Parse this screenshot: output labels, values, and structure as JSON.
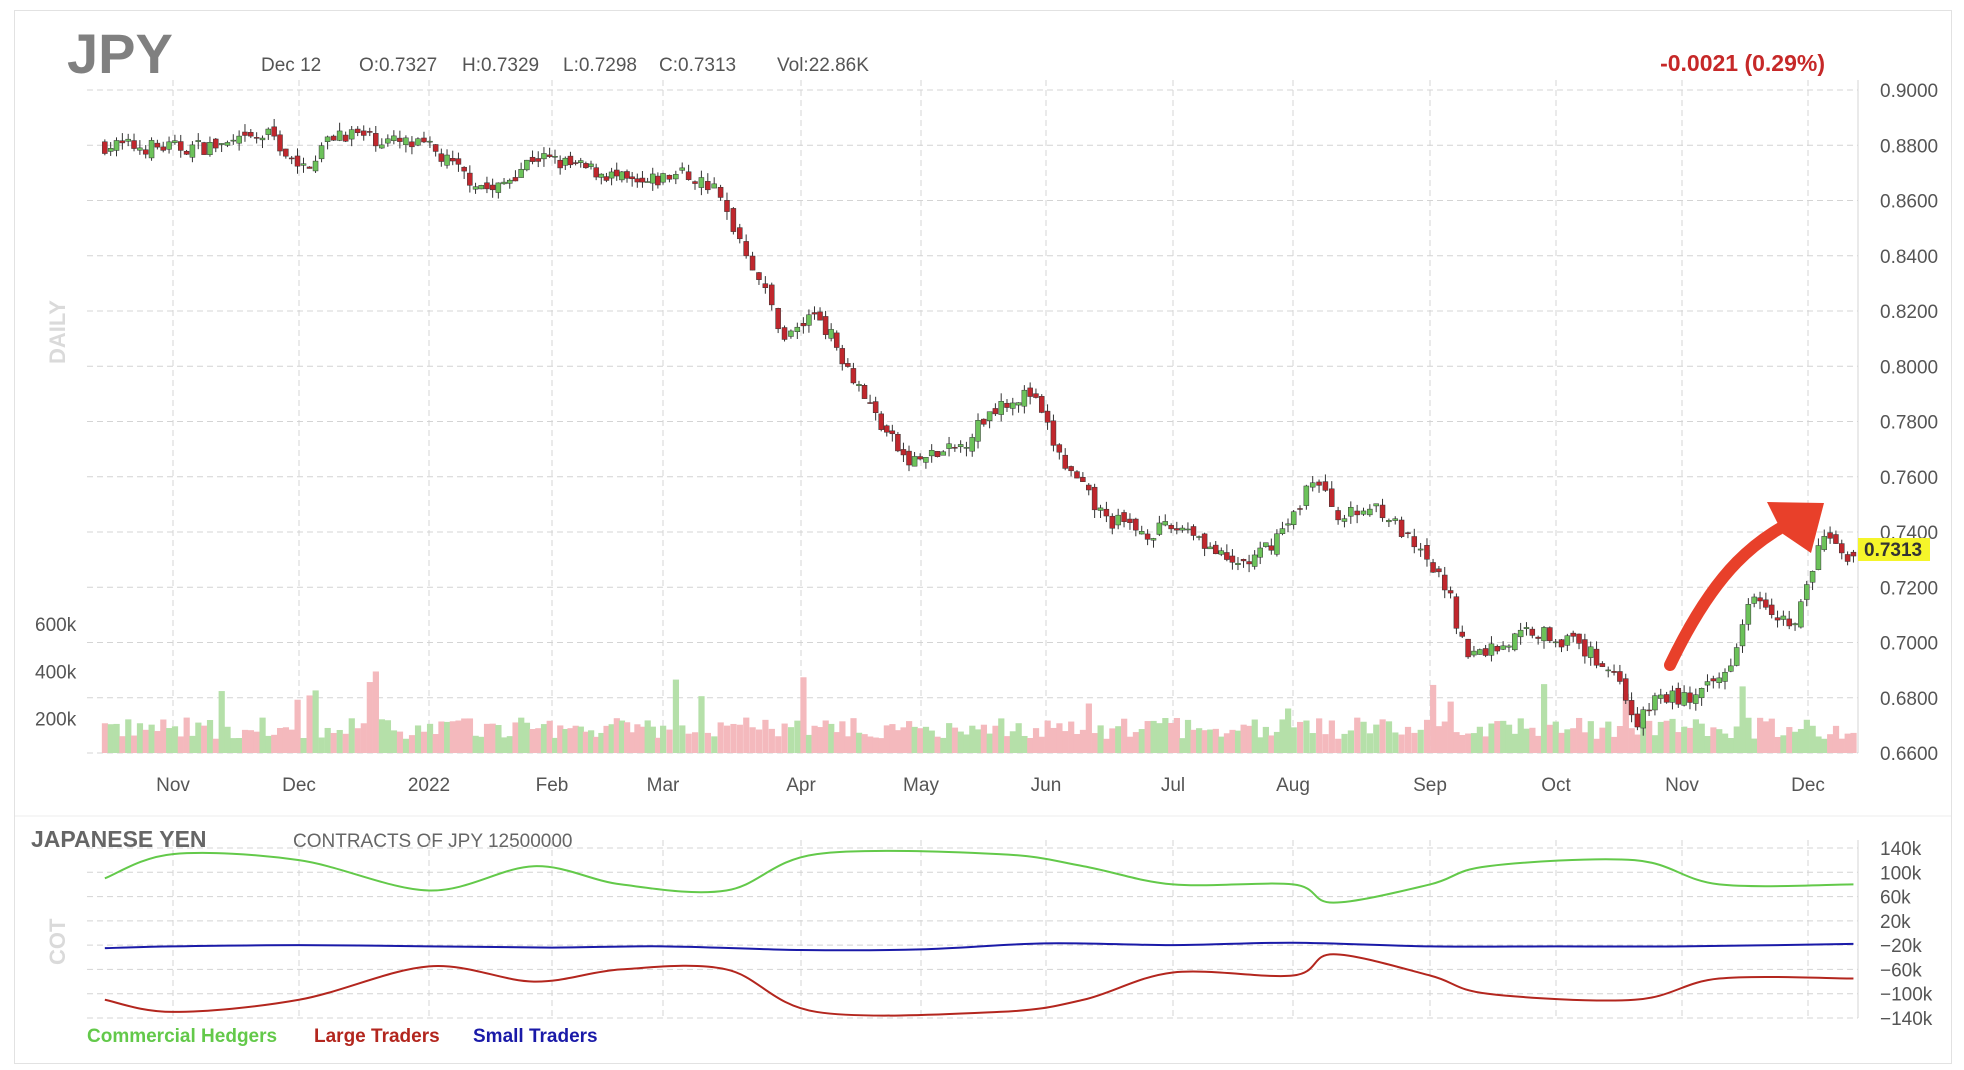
{
  "header": {
    "symbol": "JPY",
    "date": "Dec 12",
    "open": "O:0.7327",
    "high": "H:0.7329",
    "low": "L:0.7298",
    "close": "C:0.7313",
    "volume": "Vol:22.86K",
    "change": "-0.0021 (0.29%)"
  },
  "last_price_label": "0.7313",
  "side_labels": {
    "price": "DAILY",
    "cot": "COT"
  },
  "cot_header": {
    "title": "JAPANESE YEN",
    "subtitle": "CONTRACTS OF JPY 12500000"
  },
  "colors": {
    "up": "#6cc25a",
    "down": "#c0272d",
    "volume_up": "#b5e0a9",
    "volume_down": "#f4b9bd",
    "commercial": "#63c94a",
    "large": "#b3261e",
    "small": "#1a1aa8",
    "arrow": "#e8402a",
    "change_text": "#c62828",
    "highlight": "#f5f52a"
  },
  "chart_data": [
    {
      "type": "candlestick",
      "title": "JPY",
      "x_tick_labels": [
        "Nov",
        "Dec",
        "2022",
        "Feb",
        "Mar",
        "Apr",
        "May",
        "Jun",
        "Jul",
        "Aug",
        "Sep",
        "Oct",
        "Nov",
        "Dec"
      ],
      "y_tick_labels": [
        "0.9000",
        "0.8800",
        "0.8600",
        "0.8400",
        "0.8200",
        "0.8000",
        "0.7800",
        "0.7600",
        "0.7400",
        "0.7200",
        "0.7000",
        "0.6800",
        "0.6600"
      ],
      "ylim": [
        0.66,
        0.9
      ],
      "last_close": 0.7313,
      "grid": true,
      "closes": [
        [
          "Oct 15",
          0.88
        ],
        [
          "Nov 1",
          0.879
        ],
        [
          "Nov 15",
          0.88
        ],
        [
          "Nov 25",
          0.884
        ],
        [
          "Dec 1",
          0.87
        ],
        [
          "Dec 10",
          0.885
        ],
        [
          "Dec 20",
          0.882
        ],
        [
          "Jan 1",
          0.879
        ],
        [
          "Jan 10",
          0.869
        ],
        [
          "Jan 17",
          0.863
        ],
        [
          "Jan 27",
          0.876
        ],
        [
          "Feb 5",
          0.873
        ],
        [
          "Feb 15",
          0.87
        ],
        [
          "Feb 25",
          0.865
        ],
        [
          "Mar 5",
          0.87
        ],
        [
          "Mar 12",
          0.865
        ],
        [
          "Mar 20",
          0.84
        ],
        [
          "Mar 28",
          0.81
        ],
        [
          "Apr 5",
          0.82
        ],
        [
          "Apr 15",
          0.795
        ],
        [
          "Apr 20",
          0.782
        ],
        [
          "Apr 28",
          0.765
        ],
        [
          "May 10",
          0.77
        ],
        [
          "May 20",
          0.787
        ],
        [
          "May 28",
          0.79
        ],
        [
          "Jun 5",
          0.765
        ],
        [
          "Jun 15",
          0.745
        ],
        [
          "Jun 25",
          0.74
        ],
        [
          "Jul 5",
          0.742
        ],
        [
          "Jul 15",
          0.728
        ],
        [
          "Jul 22",
          0.73
        ],
        [
          "Aug 1",
          0.745
        ],
        [
          "Aug 5",
          0.76
        ],
        [
          "Aug 12",
          0.745
        ],
        [
          "Aug 20",
          0.75
        ],
        [
          "Aug 30",
          0.73
        ],
        [
          "Sep 5",
          0.72
        ],
        [
          "Sep 10",
          0.695
        ],
        [
          "Sep 20",
          0.7
        ],
        [
          "Sep 25",
          0.705
        ],
        [
          "Oct 5",
          0.7
        ],
        [
          "Oct 15",
          0.69
        ],
        [
          "Oct 21",
          0.67
        ],
        [
          "Oct 25",
          0.68
        ],
        [
          "Nov 5",
          0.68
        ],
        [
          "Nov 12",
          0.69
        ],
        [
          "Nov 18",
          0.72
        ],
        [
          "Nov 28",
          0.705
        ],
        [
          "Dec 5",
          0.74
        ],
        [
          "Dec 8",
          0.733
        ],
        [
          "Dec 12",
          0.7313
        ]
      ]
    },
    {
      "type": "bar",
      "title": "Volume",
      "y_tick_labels": [
        "600k",
        "400k",
        "200k"
      ],
      "ylim": [
        0,
        600000
      ],
      "grid": false
    },
    {
      "type": "line",
      "title": "JAPANESE YEN",
      "subtitle": "CONTRACTS OF JPY 12500000",
      "x_tick_labels": [
        "Nov",
        "Dec",
        "2022",
        "Feb",
        "Mar",
        "Apr",
        "May",
        "Jun",
        "Jul",
        "Aug",
        "Sep",
        "Oct",
        "Nov",
        "Dec"
      ],
      "y_tick_labels": [
        "140k",
        "100k",
        "60k",
        "20k",
        "−20k",
        "−60k",
        "−100k",
        "−140k"
      ],
      "ylim": [
        -140000,
        140000
      ],
      "grid": true,
      "legend_position": "bottom-left",
      "series": [
        {
          "name": "Commercial Hedgers",
          "points": [
            [
              "Oct 15",
              90000
            ],
            [
              "Nov 1",
              130000
            ],
            [
              "Dec 1",
              120000
            ],
            [
              "Jan 1",
              70000
            ],
            [
              "Jan 27",
              110000
            ],
            [
              "Feb 20",
              80000
            ],
            [
              "Mar 15",
              70000
            ],
            [
              "Apr 5",
              130000
            ],
            [
              "May 20",
              130000
            ],
            [
              "Jun 10",
              110000
            ],
            [
              "Jul 1",
              80000
            ],
            [
              "Aug 1",
              80000
            ],
            [
              "Aug 10",
              50000
            ],
            [
              "Sep 1",
              80000
            ],
            [
              "Sep 15",
              110000
            ],
            [
              "Oct 20",
              120000
            ],
            [
              "Nov 10",
              80000
            ],
            [
              "Dec 12",
              80000
            ]
          ]
        },
        {
          "name": "Large Traders",
          "points": [
            [
              "Oct 15",
              -110000
            ],
            [
              "Nov 1",
              -130000
            ],
            [
              "Dec 1",
              -110000
            ],
            [
              "Jan 1",
              -55000
            ],
            [
              "Jan 27",
              -80000
            ],
            [
              "Feb 20",
              -60000
            ],
            [
              "Mar 15",
              -60000
            ],
            [
              "Apr 5",
              -130000
            ],
            [
              "May 20",
              -130000
            ],
            [
              "Jun 10",
              -110000
            ],
            [
              "Jul 1",
              -65000
            ],
            [
              "Aug 1",
              -70000
            ],
            [
              "Aug 10",
              -35000
            ],
            [
              "Sep 1",
              -70000
            ],
            [
              "Sep 15",
              -100000
            ],
            [
              "Oct 20",
              -110000
            ],
            [
              "Nov 10",
              -75000
            ],
            [
              "Dec 12",
              -75000
            ]
          ]
        },
        {
          "name": "Small Traders",
          "points": [
            [
              "Oct 15",
              -25000
            ],
            [
              "Nov 1",
              -22000
            ],
            [
              "Dec 1",
              -20000
            ],
            [
              "Jan 1",
              -22000
            ],
            [
              "Feb 1",
              -24000
            ],
            [
              "Mar 1",
              -22000
            ],
            [
              "Apr 1",
              -28000
            ],
            [
              "May 1",
              -27000
            ],
            [
              "Jun 1",
              -17000
            ],
            [
              "Jul 1",
              -20000
            ],
            [
              "Aug 1",
              -16000
            ],
            [
              "Sep 1",
              -22000
            ],
            [
              "Oct 1",
              -22000
            ],
            [
              "Nov 1",
              -22000
            ],
            [
              "Dec 12",
              -18000
            ]
          ]
        }
      ]
    }
  ]
}
